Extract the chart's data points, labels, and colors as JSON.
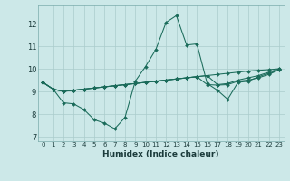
{
  "xlabel": "Humidex (Indice chaleur)",
  "background_color": "#cce8e8",
  "grid_color": "#aacccc",
  "line_color": "#1a6b5a",
  "xlim": [
    -0.5,
    23.5
  ],
  "ylim": [
    6.8,
    12.8
  ],
  "yticks": [
    7,
    8,
    9,
    10,
    11,
    12
  ],
  "xticks": [
    0,
    1,
    2,
    3,
    4,
    5,
    6,
    7,
    8,
    9,
    10,
    11,
    12,
    13,
    14,
    15,
    16,
    17,
    18,
    19,
    20,
    21,
    22,
    23
  ],
  "series": [
    [
      9.4,
      9.1,
      8.5,
      8.45,
      8.2,
      7.75,
      7.6,
      7.35,
      7.85,
      9.45,
      10.1,
      10.85,
      12.05,
      12.35,
      11.05,
      11.1,
      9.35,
      9.05,
      8.65,
      9.4,
      9.45,
      9.65,
      9.8,
      9.95
    ],
    [
      9.4,
      9.1,
      9.0,
      9.05,
      9.1,
      9.15,
      9.2,
      9.25,
      9.3,
      9.35,
      9.4,
      9.45,
      9.5,
      9.55,
      9.6,
      9.65,
      9.3,
      9.28,
      9.3,
      9.45,
      9.5,
      9.6,
      9.75,
      9.95
    ],
    [
      9.4,
      9.1,
      9.0,
      9.05,
      9.1,
      9.15,
      9.2,
      9.25,
      9.3,
      9.35,
      9.4,
      9.45,
      9.5,
      9.55,
      9.6,
      9.65,
      9.7,
      9.75,
      9.8,
      9.85,
      9.9,
      9.93,
      9.96,
      10.0
    ],
    [
      9.4,
      9.1,
      9.0,
      9.05,
      9.1,
      9.15,
      9.2,
      9.25,
      9.3,
      9.35,
      9.4,
      9.45,
      9.5,
      9.55,
      9.6,
      9.65,
      9.7,
      9.3,
      9.35,
      9.5,
      9.6,
      9.7,
      9.85,
      10.0
    ]
  ]
}
